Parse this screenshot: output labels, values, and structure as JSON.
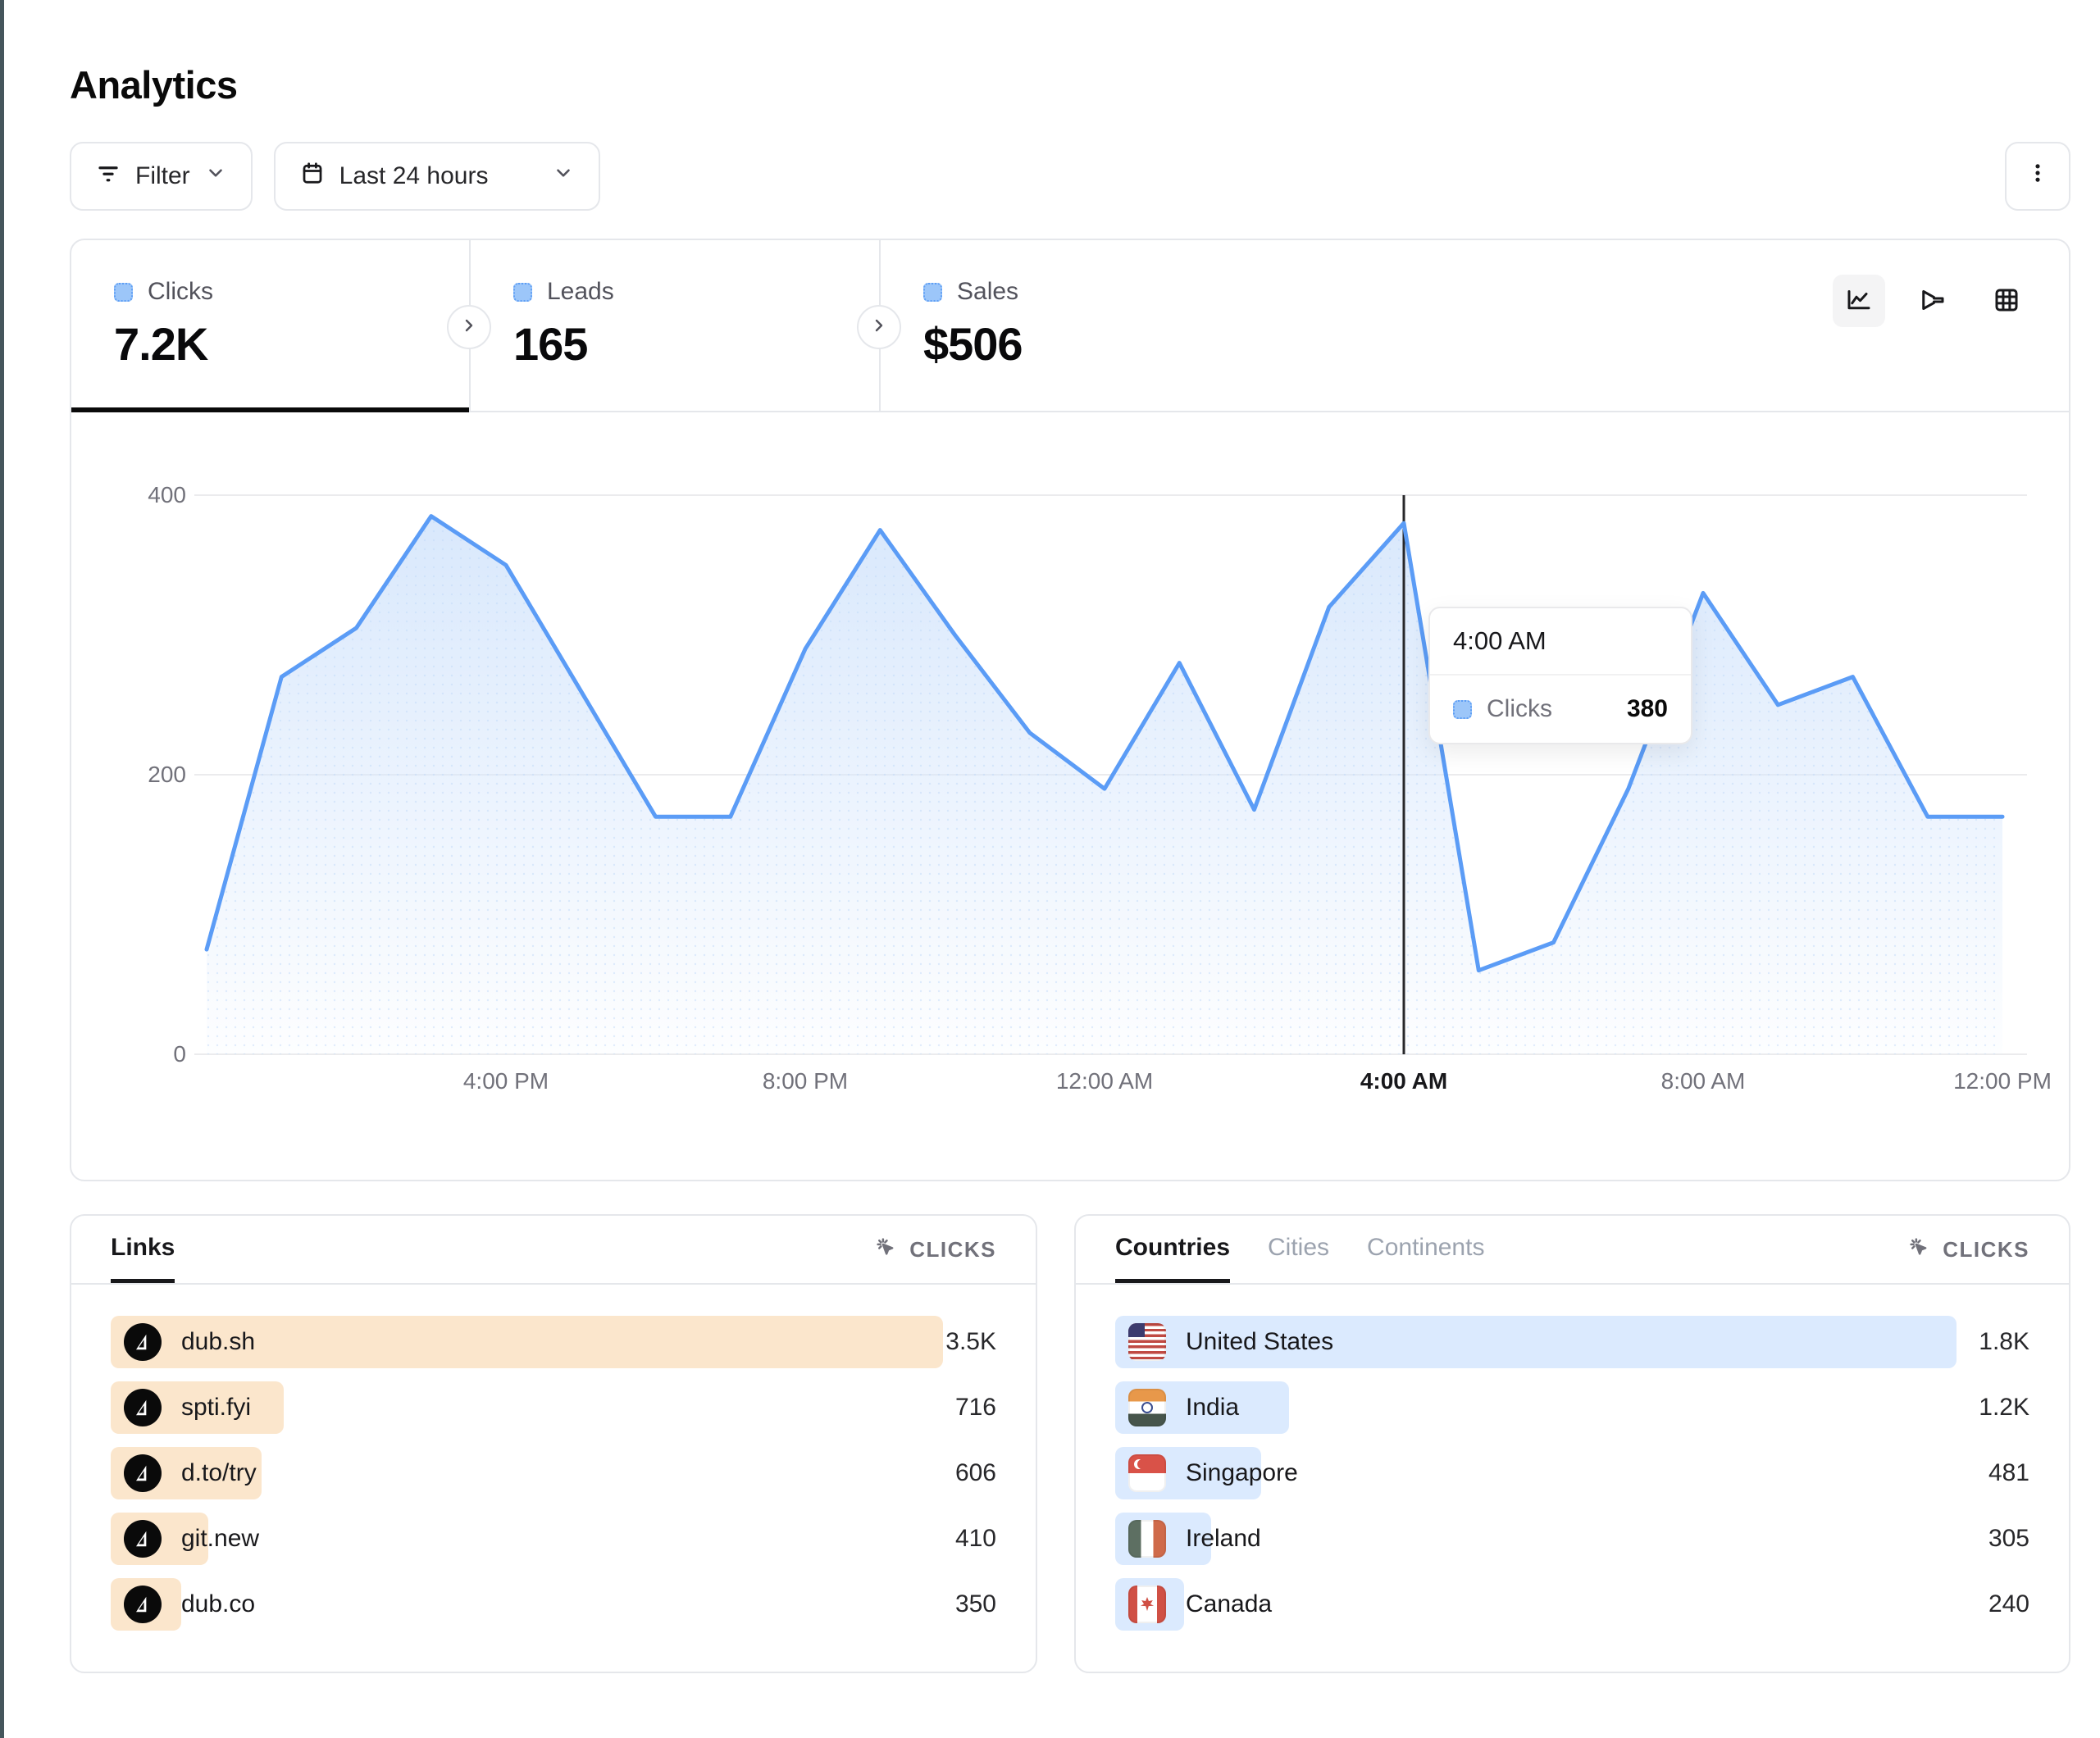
{
  "page": {
    "title": "Analytics"
  },
  "toolbar": {
    "filter": {
      "label": "Filter"
    },
    "date_range": {
      "label": "Last 24 hours"
    }
  },
  "stats": {
    "tabs": [
      {
        "label": "Clicks",
        "value": "7.2K",
        "active": true
      },
      {
        "label": "Leads",
        "value": "165",
        "active": false
      },
      {
        "label": "Sales",
        "value": "$506",
        "active": false
      }
    ],
    "legend_color": "#9cc6f9",
    "view_toggles": [
      "line-chart",
      "funnel",
      "table"
    ]
  },
  "chart_data": {
    "type": "area",
    "title": "Clicks over last 24 hours",
    "x": [
      "12:00 PM",
      "1:00 PM",
      "2:00 PM",
      "3:00 PM",
      "4:00 PM",
      "5:00 PM",
      "6:00 PM",
      "7:00 PM",
      "8:00 PM",
      "9:00 PM",
      "10:00 PM",
      "11:00 PM",
      "12:00 AM",
      "1:00 AM",
      "2:00 AM",
      "3:00 AM",
      "4:00 AM",
      "5:00 AM",
      "6:00 AM",
      "7:00 AM",
      "8:00 AM",
      "9:00 AM",
      "10:00 AM",
      "11:00 AM",
      "12:00 PM"
    ],
    "series": [
      {
        "name": "Clicks",
        "values": [
          75,
          270,
          305,
          385,
          350,
          260,
          170,
          170,
          290,
          375,
          300,
          230,
          190,
          280,
          175,
          320,
          380,
          60,
          80,
          190,
          330,
          250,
          270,
          170,
          170
        ]
      }
    ],
    "ylim": [
      0,
      400
    ],
    "y_ticks": [
      0,
      200,
      400
    ],
    "x_ticks": [
      {
        "index": 4,
        "label": "4:00 PM"
      },
      {
        "index": 8,
        "label": "8:00 PM"
      },
      {
        "index": 12,
        "label": "12:00 AM"
      },
      {
        "index": 16,
        "label": "4:00 AM"
      },
      {
        "index": 20,
        "label": "8:00 AM"
      },
      {
        "index": 24,
        "label": "12:00 PM"
      }
    ],
    "highlight": {
      "index": 16,
      "label": "4:00 AM",
      "value": 380
    },
    "grid": "horizontal",
    "line_color": "#5b9cf6",
    "area_color": "#d7e7fc"
  },
  "tooltip": {
    "time": "4:00 AM",
    "series_label": "Clicks",
    "value": "380"
  },
  "links_panel": {
    "tab_label": "Links",
    "metric_label": "CLICKS",
    "bar_color": "#fbe6cc",
    "rows": [
      {
        "label": "dub.sh",
        "value": "3.5K",
        "bar_pct": 94
      },
      {
        "label": "spti.fyi",
        "value": "716",
        "bar_pct": 19.5
      },
      {
        "label": "d.to/try",
        "value": "606",
        "bar_pct": 17
      },
      {
        "label": "git.new",
        "value": "410",
        "bar_pct": 11
      },
      {
        "label": "dub.co",
        "value": "350",
        "bar_pct": 8
      }
    ]
  },
  "countries_panel": {
    "tabs": [
      {
        "label": "Countries",
        "active": true
      },
      {
        "label": "Cities",
        "active": false
      },
      {
        "label": "Continents",
        "active": false
      }
    ],
    "metric_label": "CLICKS",
    "bar_color": "#dbeafe",
    "rows": [
      {
        "label": "United States",
        "flag": "us",
        "value": "1.8K",
        "bar_pct": 92
      },
      {
        "label": "India",
        "flag": "in",
        "value": "1.2K",
        "bar_pct": 19
      },
      {
        "label": "Singapore",
        "flag": "sg",
        "value": "481",
        "bar_pct": 16
      },
      {
        "label": "Ireland",
        "flag": "ie",
        "value": "305",
        "bar_pct": 10.5
      },
      {
        "label": "Canada",
        "flag": "ca",
        "value": "240",
        "bar_pct": 7.5
      }
    ]
  }
}
